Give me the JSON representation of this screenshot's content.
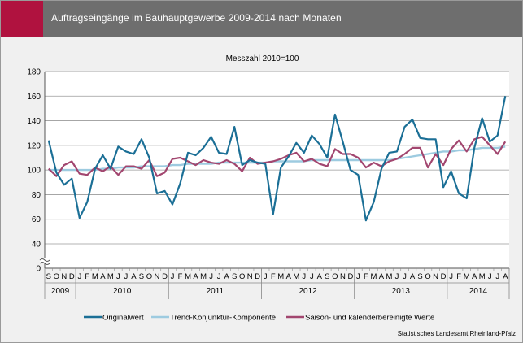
{
  "header": {
    "title": "Auftragseingänge im Bauhauptgewerbe 2009-2014 nach Monaten"
  },
  "footer": {
    "source": "Statistisches Landesamt Rheinland-Pfalz"
  },
  "colors": {
    "header_bg": "#6e6e6e",
    "accent": "#b0123f",
    "originalwert": "#1b6f96",
    "trend": "#9dcbe0",
    "saison": "#a2466f",
    "plot_bg": "#ffffff",
    "grid": "#9a9a9a"
  },
  "chart_data": {
    "type": "line",
    "title": "Messzahl 2010=100",
    "ylim": [
      0,
      180
    ],
    "yticks": [
      0,
      40,
      60,
      80,
      100,
      120,
      140,
      160,
      180
    ],
    "axis_break": true,
    "grid": "horizontal",
    "legend_position": "bottom",
    "x": [
      "2009-09",
      "2009-10",
      "2009-11",
      "2009-12",
      "2010-01",
      "2010-02",
      "2010-03",
      "2010-04",
      "2010-05",
      "2010-06",
      "2010-07",
      "2010-08",
      "2010-09",
      "2010-10",
      "2010-11",
      "2010-12",
      "2011-01",
      "2011-02",
      "2011-03",
      "2011-04",
      "2011-05",
      "2011-06",
      "2011-07",
      "2011-08",
      "2011-09",
      "2011-10",
      "2011-11",
      "2011-12",
      "2012-01",
      "2012-02",
      "2012-03",
      "2012-04",
      "2012-05",
      "2012-06",
      "2012-07",
      "2012-08",
      "2012-09",
      "2012-10",
      "2012-11",
      "2012-12",
      "2013-01",
      "2013-02",
      "2013-03",
      "2013-04",
      "2013-05",
      "2013-06",
      "2013-07",
      "2013-08",
      "2013-09",
      "2013-10",
      "2013-11",
      "2013-12",
      "2014-01",
      "2014-02",
      "2014-03",
      "2014-04",
      "2014-05",
      "2014-06",
      "2014-07",
      "2014-08"
    ],
    "month_labels": [
      "S",
      "O",
      "N",
      "D",
      "J",
      "F",
      "M",
      "A",
      "M",
      "J",
      "J",
      "A",
      "S",
      "O",
      "N",
      "D",
      "J",
      "F",
      "M",
      "A",
      "M",
      "J",
      "J",
      "A",
      "S",
      "O",
      "N",
      "D",
      "J",
      "F",
      "M",
      "A",
      "M",
      "J",
      "J",
      "A",
      "S",
      "O",
      "N",
      "D",
      "J",
      "F",
      "M",
      "A",
      "M",
      "J",
      "J",
      "A",
      "S",
      "O",
      "N",
      "D",
      "J",
      "F",
      "M",
      "A",
      "M",
      "J",
      "J",
      "A"
    ],
    "year_groups": [
      {
        "label": "2009",
        "start": 0,
        "count": 4
      },
      {
        "label": "2010",
        "start": 4,
        "count": 12
      },
      {
        "label": "2011",
        "start": 16,
        "count": 12
      },
      {
        "label": "2012",
        "start": 28,
        "count": 12
      },
      {
        "label": "2013",
        "start": 40,
        "count": 12
      },
      {
        "label": "2014",
        "start": 52,
        "count": 8
      }
    ],
    "series": [
      {
        "name": "Originalwert",
        "values": [
          124,
          98,
          88,
          93,
          61,
          74,
          101,
          112,
          101,
          119,
          115,
          113,
          125,
          110,
          81,
          83,
          72,
          89,
          114,
          112,
          118,
          127,
          114,
          113,
          135,
          104,
          108,
          106,
          105,
          64,
          102,
          111,
          122,
          114,
          128,
          121,
          110,
          145,
          123,
          100,
          96,
          59,
          74,
          101,
          114,
          115,
          135,
          141,
          126,
          125,
          125,
          86,
          99,
          81,
          77,
          118,
          142,
          123,
          128,
          160
        ]
      },
      {
        "name": "Trend-Konjunktur-Komponente",
        "values": [
          100,
          100,
          100,
          100,
          100,
          100,
          100,
          101,
          101,
          102,
          102,
          102,
          103,
          103,
          103,
          103,
          104,
          104,
          105,
          105,
          105,
          105,
          106,
          106,
          106,
          106,
          106,
          106,
          106,
          107,
          107,
          107,
          107,
          107,
          108,
          108,
          108,
          108,
          108,
          108,
          108,
          108,
          108,
          108,
          108,
          109,
          110,
          111,
          112,
          113,
          114,
          115,
          115,
          116,
          116,
          117,
          118,
          118,
          118,
          119
        ]
      },
      {
        "name": "Saison- und kalenderbereinigte Werte",
        "values": [
          101,
          95,
          104,
          107,
          97,
          96,
          102,
          99,
          103,
          96,
          103,
          103,
          101,
          108,
          95,
          98,
          109,
          110,
          107,
          104,
          108,
          106,
          105,
          108,
          105,
          99,
          110,
          105,
          106,
          107,
          109,
          112,
          114,
          107,
          109,
          105,
          103,
          117,
          113,
          113,
          110,
          102,
          106,
          103,
          107,
          109,
          113,
          118,
          118,
          102,
          113,
          104,
          117,
          124,
          115,
          125,
          127,
          120,
          113,
          123
        ]
      }
    ]
  }
}
